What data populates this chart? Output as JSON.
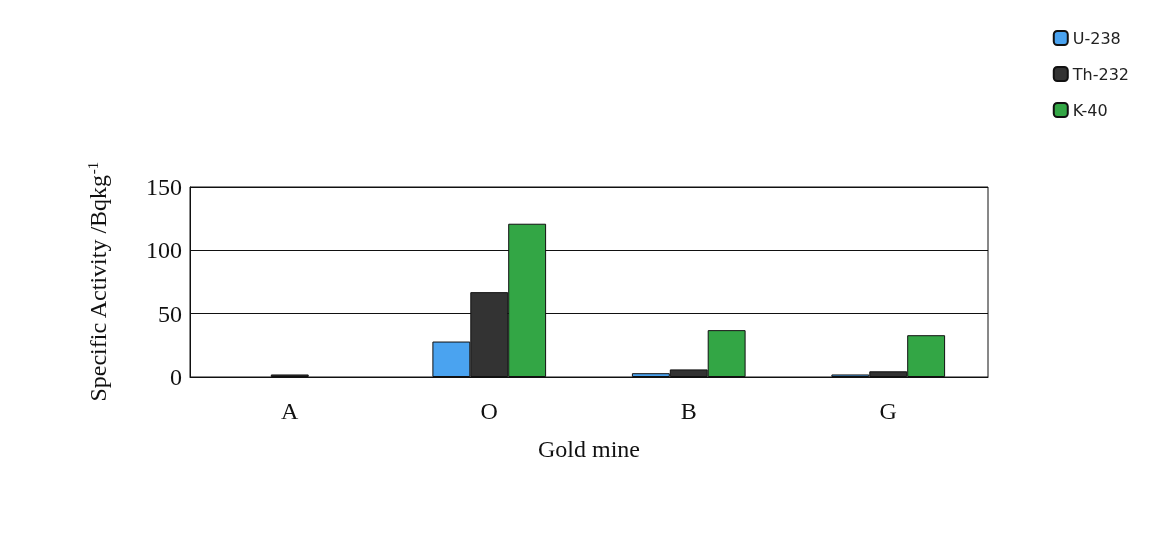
{
  "chart_data": {
    "type": "bar",
    "xlabel": "Gold mine",
    "ylabel": "Specific Activity /Bqkg$^{-1}$",
    "categories": [
      "A",
      "O",
      "B",
      "G"
    ],
    "series": [
      {
        "name": "U-238",
        "color": "#4aa3f0",
        "values": [
          null,
          28,
          3,
          2
        ]
      },
      {
        "name": "Th-232",
        "color": "#333333",
        "values": [
          2,
          67,
          6,
          4.5
        ]
      },
      {
        "name": "K-40",
        "color": "#33a645",
        "values": [
          null,
          121,
          37,
          33
        ]
      }
    ],
    "ylim": [
      0,
      150
    ],
    "yticks": [
      0,
      50,
      100,
      150
    ],
    "grid": "y",
    "legend": "top right"
  }
}
